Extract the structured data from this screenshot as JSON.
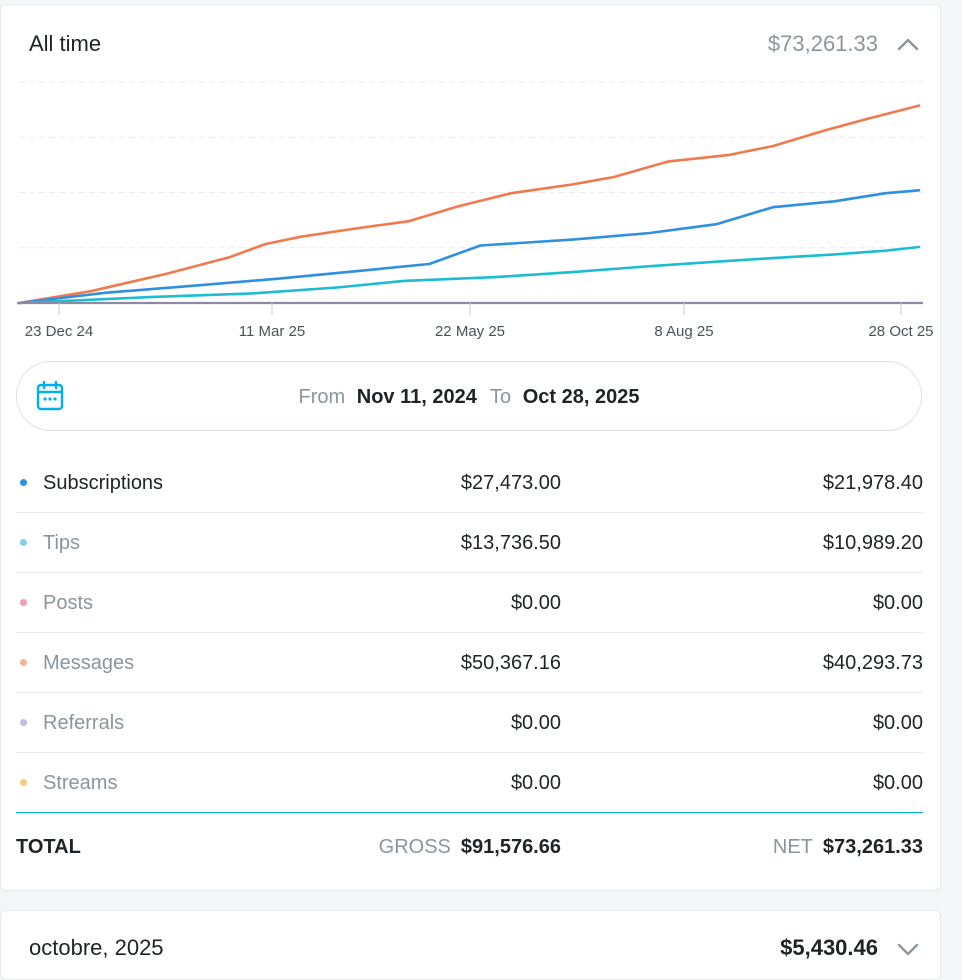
{
  "all_time": {
    "title": "All time",
    "total": "$73,261.33",
    "collapse_icon": "chevron-up-icon"
  },
  "chart_data": {
    "type": "line",
    "x_ticks": [
      "23 Dec 24",
      "11 Mar 25",
      "22 May 25",
      "8 Aug 25",
      "28 Oct 25"
    ],
    "x_range": [
      "2024-11-11",
      "2025-10-28"
    ],
    "grid": "horizontal dashed",
    "series": [
      {
        "color": "#f07a4e",
        "points": [
          [
            "2024-11-11",
            0
          ],
          [
            "2024-12-09",
            1600
          ],
          [
            "2025-01-08",
            4000
          ],
          [
            "2025-02-01",
            6200
          ],
          [
            "2025-02-15",
            8000
          ],
          [
            "2025-03-01",
            9000
          ],
          [
            "2025-03-22",
            10100
          ],
          [
            "2025-04-12",
            11100
          ],
          [
            "2025-05-01",
            13100
          ],
          [
            "2025-05-22",
            14900
          ],
          [
            "2025-06-15",
            16100
          ],
          [
            "2025-07-01",
            17100
          ],
          [
            "2025-07-22",
            19200
          ],
          [
            "2025-08-15",
            20100
          ],
          [
            "2025-09-01",
            21300
          ],
          [
            "2025-09-22",
            23500
          ],
          [
            "2025-10-08",
            25000
          ],
          [
            "2025-10-28",
            26800
          ]
        ]
      },
      {
        "color": "#2f8fe0",
        "points": [
          [
            "2024-11-11",
            0
          ],
          [
            "2024-12-15",
            1400
          ],
          [
            "2025-01-20",
            2400
          ],
          [
            "2025-02-20",
            3300
          ],
          [
            "2025-03-22",
            4300
          ],
          [
            "2025-04-20",
            5300
          ],
          [
            "2025-05-10",
            7800
          ],
          [
            "2025-06-15",
            8600
          ],
          [
            "2025-07-15",
            9500
          ],
          [
            "2025-08-10",
            10700
          ],
          [
            "2025-09-01",
            13000
          ],
          [
            "2025-09-25",
            13800
          ],
          [
            "2025-10-15",
            14900
          ],
          [
            "2025-10-28",
            15300
          ]
        ]
      },
      {
        "color": "#1cbcd1",
        "points": [
          [
            "2024-11-11",
            0
          ],
          [
            "2025-01-01",
            800
          ],
          [
            "2025-02-10",
            1300
          ],
          [
            "2025-03-15",
            2100
          ],
          [
            "2025-04-10",
            3000
          ],
          [
            "2025-05-15",
            3500
          ],
          [
            "2025-06-15",
            4200
          ],
          [
            "2025-07-15",
            5000
          ],
          [
            "2025-08-10",
            5600
          ],
          [
            "2025-09-01",
            6100
          ],
          [
            "2025-09-25",
            6600
          ],
          [
            "2025-10-15",
            7100
          ],
          [
            "2025-10-28",
            7600
          ]
        ]
      }
    ]
  },
  "date_range": {
    "icon": "calendar-icon",
    "from_label": "From",
    "from_value": "Nov 11, 2024",
    "to_label": "To",
    "to_value": "Oct 28, 2025"
  },
  "rows": [
    {
      "label": "Subscriptions",
      "gross": "$27,473.00",
      "net": "$21,978.40",
      "dot_color": "#2f8fe0",
      "label_color": "#1f2326"
    },
    {
      "label": "Tips",
      "gross": "$13,736.50",
      "net": "$10,989.20",
      "dot_color": "#7fd3e6",
      "label_color": "#8a969c"
    },
    {
      "label": "Posts",
      "gross": "$0.00",
      "net": "$0.00",
      "dot_color": "#f29ab4",
      "label_color": "#8a969c"
    },
    {
      "label": "Messages",
      "gross": "$50,367.16",
      "net": "$40,293.73",
      "dot_color": "#f5b49a",
      "label_color": "#8a969c"
    },
    {
      "label": "Referrals",
      "gross": "$0.00",
      "net": "$0.00",
      "dot_color": "#c3b8e6",
      "label_color": "#8a969c"
    },
    {
      "label": "Streams",
      "gross": "$0.00",
      "net": "$0.00",
      "dot_color": "#f7cf7a",
      "label_color": "#8a969c"
    }
  ],
  "total": {
    "label": "TOTAL",
    "gross_label": "GROSS",
    "gross_value": "$91,576.66",
    "net_label": "NET",
    "net_value": "$73,261.33"
  },
  "month": {
    "title": "octobre, 2025",
    "total": "$5,430.46",
    "expand_icon": "chevron-down-icon"
  }
}
